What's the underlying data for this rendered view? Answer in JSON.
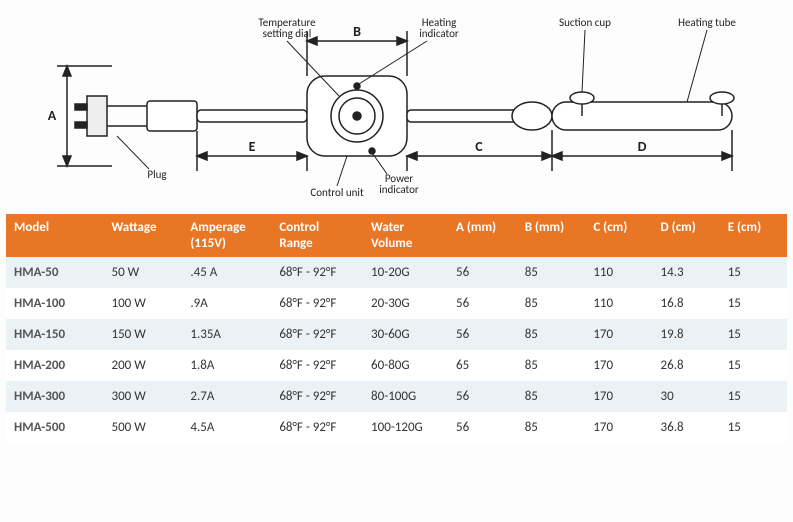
{
  "diagram": {
    "labels": {
      "plug": "Plug",
      "temp_dial": "Temperature\nsetting dial",
      "heat_ind": "Heating\nindicator",
      "power_ind": "Power\nindicator",
      "control_unit": "Control unit",
      "suction_cup": "Suction cup",
      "heating_tube": "Heating tube",
      "A": "A",
      "B": "B",
      "C": "C",
      "D": "D",
      "E": "E"
    },
    "colors": {
      "stroke": "#222222",
      "text": "#222222",
      "bg": "#ffffff"
    }
  },
  "table": {
    "header_bg": "#e97625",
    "header_fg": "#ffffff",
    "row_odd_bg": "#ebf2f5",
    "row_even_bg": "#ffffff",
    "columns": [
      "Model",
      "Wattage",
      "Amperage (115V)",
      "Control Range",
      "Water Volume",
      "A (mm)",
      "B (mm)",
      "C (cm)",
      "D (cm)",
      "E (cm)"
    ],
    "rows": [
      {
        "model": "HMA-50",
        "wattage": "50 W",
        "amperage": ".45 A",
        "control_range": "68°F - 92°F",
        "water_volume": "10-20G",
        "a": "56",
        "b": "85",
        "c": "110",
        "d": "14.3",
        "e": "15"
      },
      {
        "model": "HMA-100",
        "wattage": "100 W",
        "amperage": ".9A",
        "control_range": "68°F - 92°F",
        "water_volume": "20-30G",
        "a": "56",
        "b": "85",
        "c": "110",
        "d": "16.8",
        "e": "15"
      },
      {
        "model": "HMA-150",
        "wattage": "150 W",
        "amperage": "1.35A",
        "control_range": "68°F - 92°F",
        "water_volume": "30-60G",
        "a": "56",
        "b": "85",
        "c": "170",
        "d": "19.8",
        "e": "15"
      },
      {
        "model": "HMA-200",
        "wattage": "200 W",
        "amperage": "1.8A",
        "control_range": "68°F - 92°F",
        "water_volume": "60-80G",
        "a": "65",
        "b": "85",
        "c": "170",
        "d": "26.8",
        "e": "15"
      },
      {
        "model": "HMA-300",
        "wattage": "300 W",
        "amperage": "2.7A",
        "control_range": "68°F - 92°F",
        "water_volume": "80-100G",
        "a": "56",
        "b": "85",
        "c": "170",
        "d": "30",
        "e": "15"
      },
      {
        "model": "HMA-500",
        "wattage": "500 W",
        "amperage": "4.5A",
        "control_range": "68°F - 92°F",
        "water_volume": "100-120G",
        "a": "56",
        "b": "85",
        "c": "170",
        "d": "36.8",
        "e": "15"
      }
    ]
  }
}
